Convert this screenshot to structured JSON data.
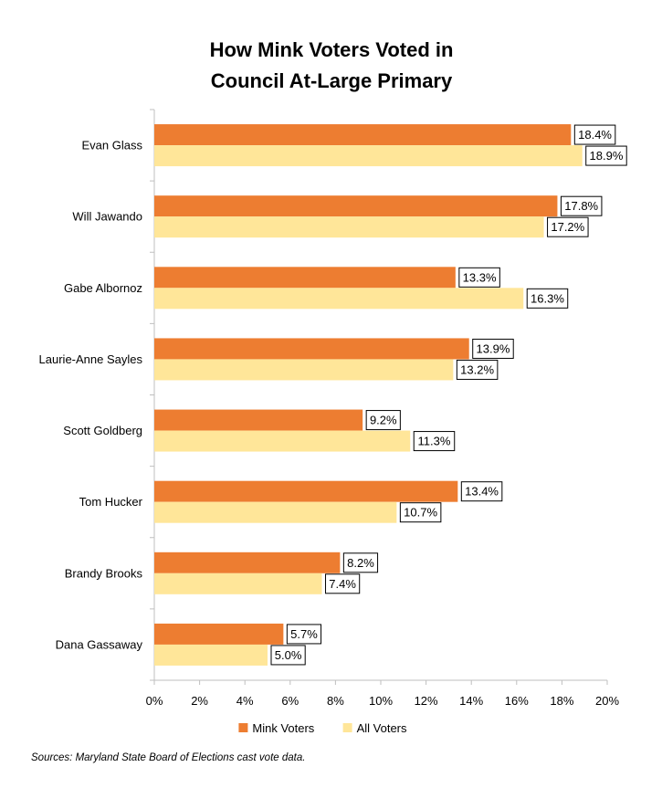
{
  "chart_data": {
    "type": "bar",
    "orientation": "horizontal",
    "title_lines": [
      "How Mink Voters Voted in",
      "Council At-Large Primary"
    ],
    "categories": [
      "Evan Glass",
      "Will Jawando",
      "Gabe Albornoz",
      "Laurie-Anne Sayles",
      "Scott Goldberg",
      "Tom Hucker",
      "Brandy Brooks",
      "Dana Gassaway"
    ],
    "series": [
      {
        "name": "Mink Voters",
        "color": "#ED7D31",
        "values": [
          18.4,
          17.8,
          13.3,
          13.9,
          9.2,
          13.4,
          8.2,
          5.7
        ],
        "labels": [
          "18.4%",
          "17.8%",
          "13.3%",
          "13.9%",
          "9.2%",
          "13.4%",
          "8.2%",
          "5.7%"
        ]
      },
      {
        "name": "All Voters",
        "color": "#FFE699",
        "values": [
          18.9,
          17.2,
          16.3,
          13.2,
          11.3,
          10.7,
          7.4,
          5.0
        ],
        "labels": [
          "18.9%",
          "17.2%",
          "16.3%",
          "13.2%",
          "11.3%",
          "10.7%",
          "7.4%",
          "5.0%"
        ]
      }
    ],
    "xlim": [
      0,
      20
    ],
    "xticks": [
      0,
      2,
      4,
      6,
      8,
      10,
      12,
      14,
      16,
      18,
      20
    ],
    "xtick_labels": [
      "0%",
      "2%",
      "4%",
      "6%",
      "8%",
      "10%",
      "12%",
      "14%",
      "16%",
      "18%",
      "20%"
    ],
    "legend_position": "bottom",
    "grid": false,
    "source": "Sources: Maryland State Board of Elections cast vote data."
  }
}
